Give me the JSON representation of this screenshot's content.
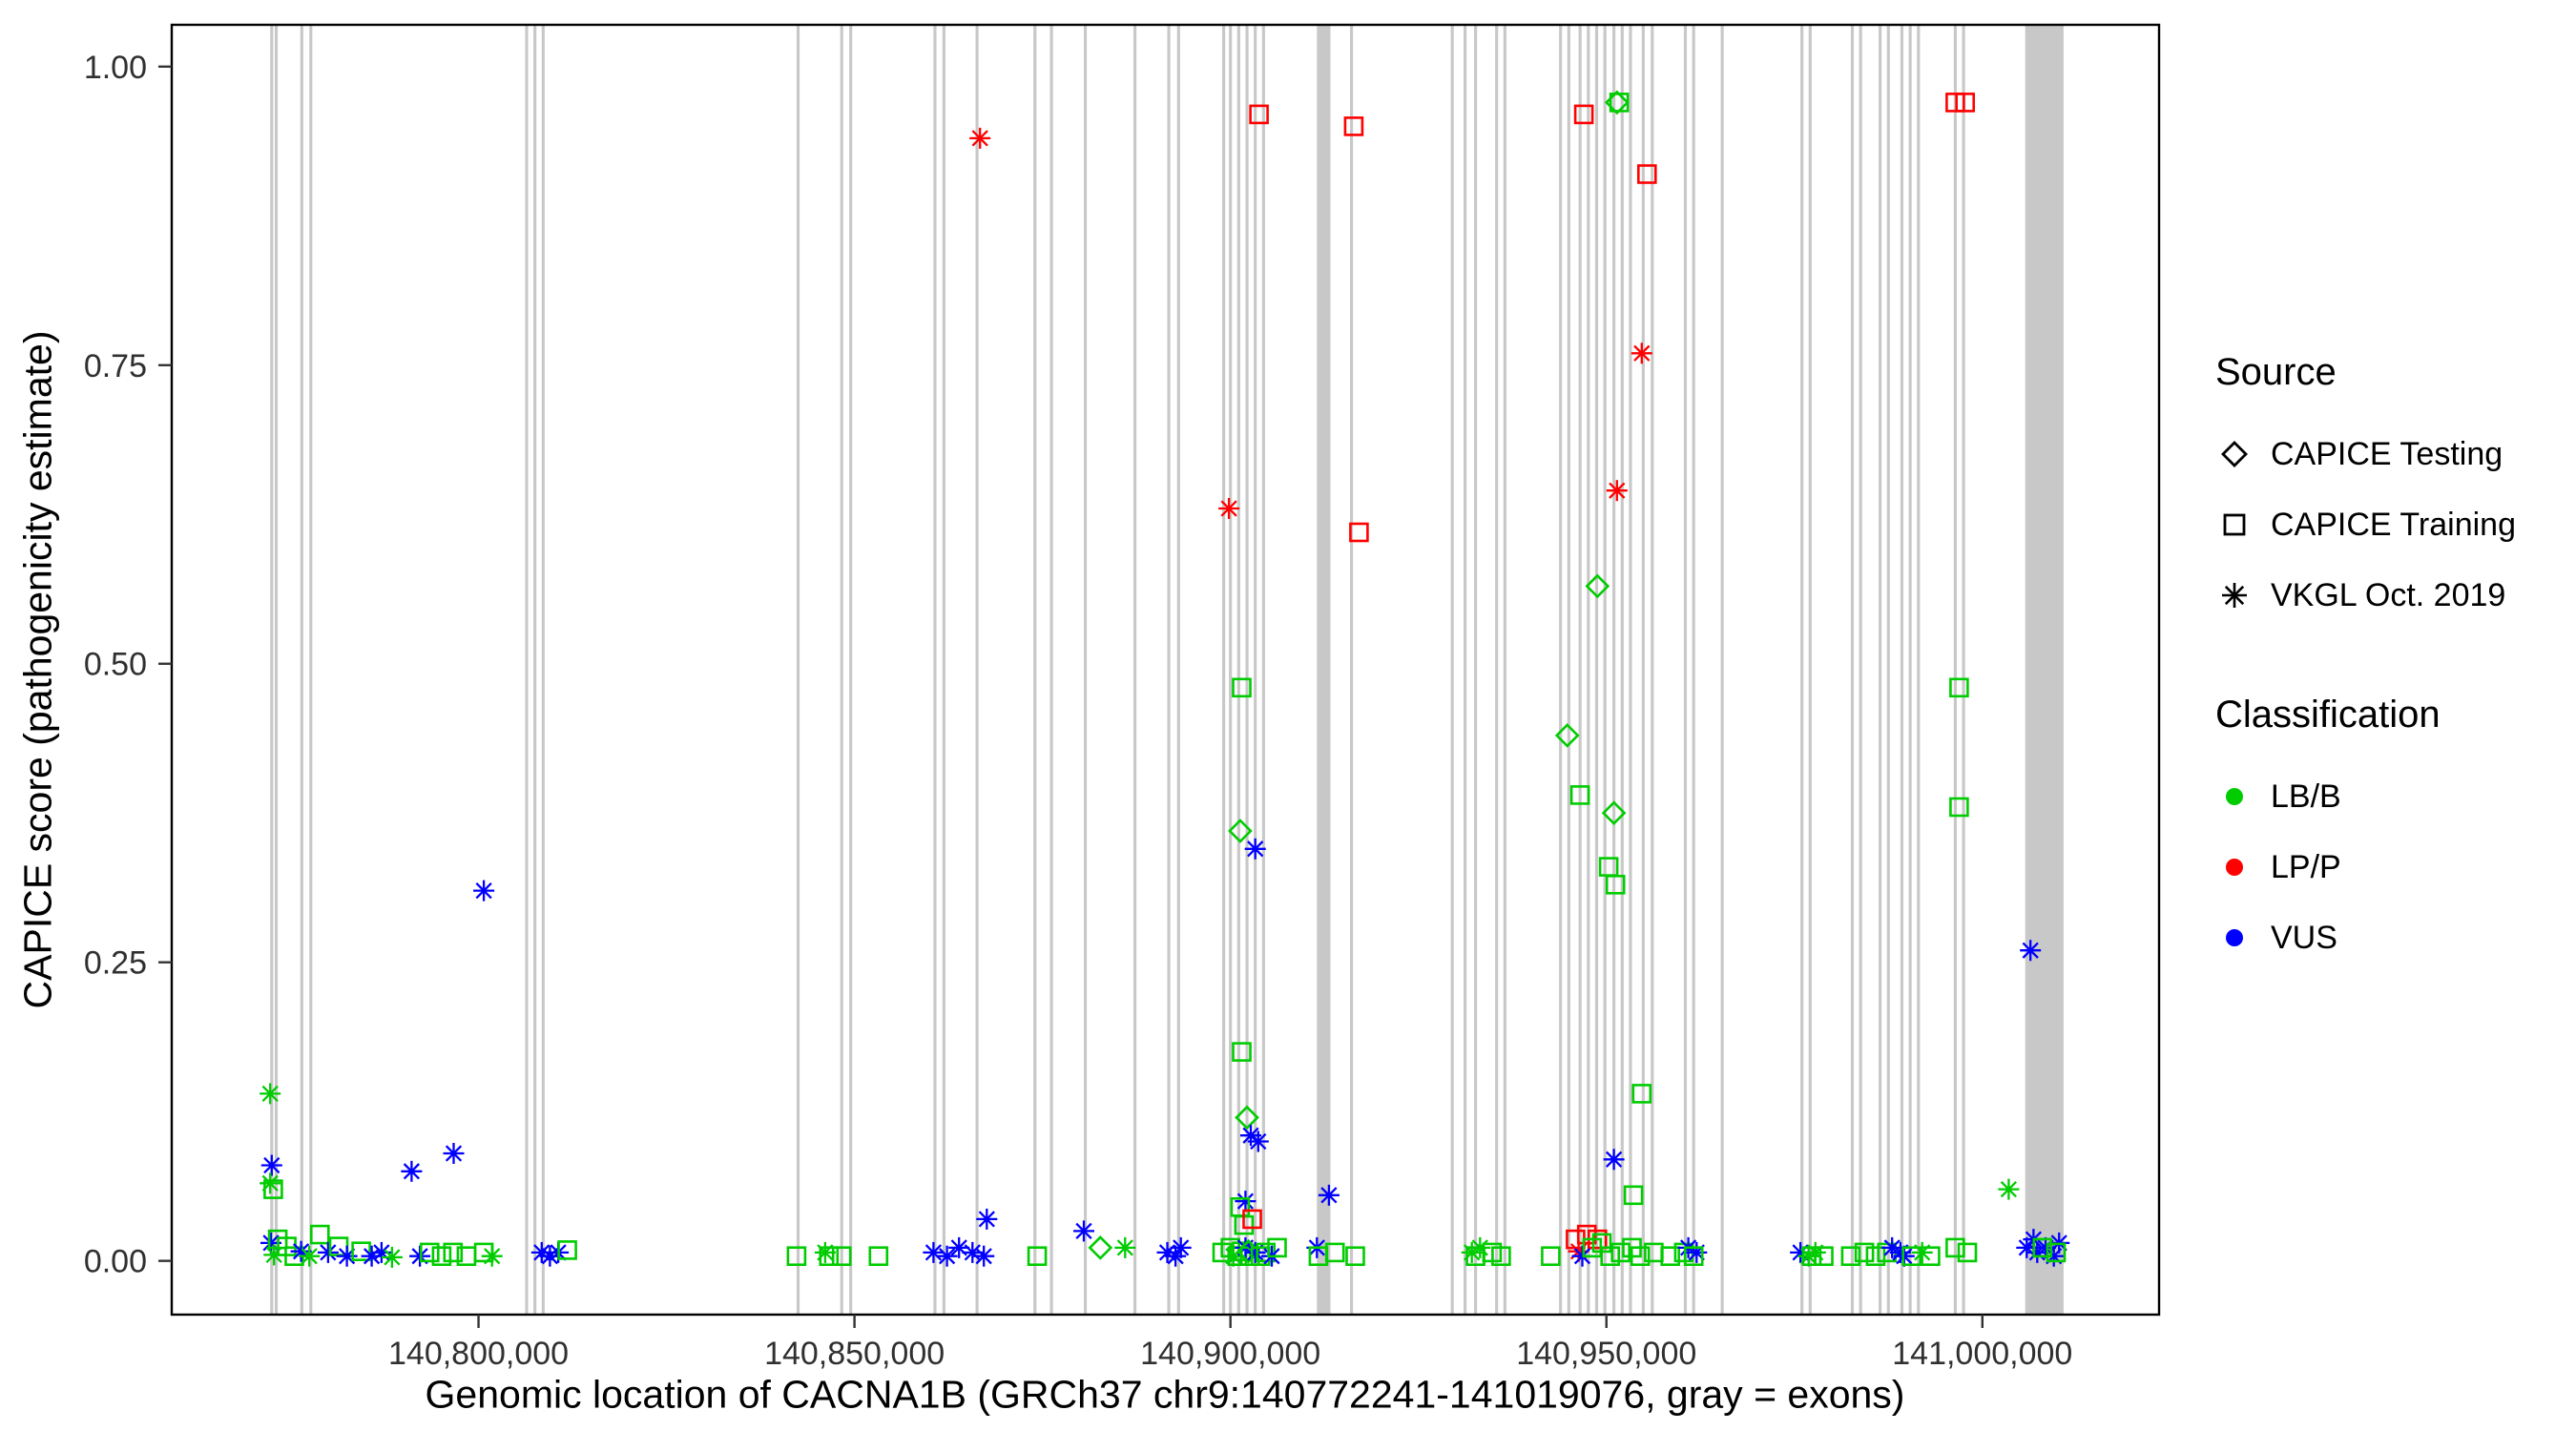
{
  "figure": {
    "background": "#FFFFFF",
    "panel_border": "#000000",
    "tick_color": "#333333",
    "tick_label_color": "#303030"
  },
  "legend": {
    "source_title": "Source",
    "source_items": [
      {
        "label": "CAPICE Testing",
        "shape": "diamond"
      },
      {
        "label": "CAPICE Training",
        "shape": "square"
      },
      {
        "label": "VKGL Oct. 2019",
        "shape": "asterisk"
      }
    ],
    "classification_title": "Classification",
    "classification_items": [
      {
        "label": "LB/B",
        "color": "#00CC00"
      },
      {
        "label": "LP/P",
        "color": "#FF0000"
      },
      {
        "label": "VUS",
        "color": "#0000FF"
      }
    ]
  },
  "chart_data": {
    "type": "scatter",
    "title": "",
    "xlabel": "Genomic location of CACNA1B (GRCh37 chr9:140772241-141019076, gray = exons)",
    "ylabel": "CAPICE score (pathogenicity estimate)",
    "xlim": [
      140759200,
      141023500
    ],
    "ylim": [
      -0.045,
      1.035
    ],
    "grid": false,
    "legend_position": "right",
    "x_ticks": [
      {
        "pos": 140800000,
        "label": "140,800,000"
      },
      {
        "pos": 140850000,
        "label": "140,850,000"
      },
      {
        "pos": 140900000,
        "label": "140,900,000"
      },
      {
        "pos": 140950000,
        "label": "140,950,000"
      },
      {
        "pos": 141000000,
        "label": "141,000,000"
      }
    ],
    "y_ticks": [
      {
        "pos": 0.0,
        "label": "0.00"
      },
      {
        "pos": 0.25,
        "label": "0.25"
      },
      {
        "pos": 0.5,
        "label": "0.50"
      },
      {
        "pos": 0.75,
        "label": "0.75"
      },
      {
        "pos": 1.0,
        "label": "1.00"
      }
    ],
    "exon_color": "#C8C8C8",
    "exons_note": "gray vertical bands = exons, [start_bp, width_bp]",
    "exons": [
      [
        140772300,
        400
      ],
      [
        140772900,
        400
      ],
      [
        140776300,
        400
      ],
      [
        140777500,
        400
      ],
      [
        140806200,
        400
      ],
      [
        140807300,
        400
      ],
      [
        140808400,
        400
      ],
      [
        140842300,
        400
      ],
      [
        140848100,
        400
      ],
      [
        140849300,
        400
      ],
      [
        140860500,
        400
      ],
      [
        140861700,
        400
      ],
      [
        140866100,
        400
      ],
      [
        140873800,
        400
      ],
      [
        140876000,
        400
      ],
      [
        140880500,
        400
      ],
      [
        140887100,
        400
      ],
      [
        140891600,
        400
      ],
      [
        140892900,
        400
      ],
      [
        140898900,
        400
      ],
      [
        140899800,
        400
      ],
      [
        140900900,
        400
      ],
      [
        140902000,
        400
      ],
      [
        140903100,
        400
      ],
      [
        140904200,
        400
      ],
      [
        140911500,
        1800
      ],
      [
        140915900,
        400
      ],
      [
        140929300,
        400
      ],
      [
        140931000,
        400
      ],
      [
        140932400,
        400
      ],
      [
        140935200,
        400
      ],
      [
        140936300,
        400
      ],
      [
        140943700,
        400
      ],
      [
        140944800,
        400
      ],
      [
        140946300,
        400
      ],
      [
        140947400,
        400
      ],
      [
        140948500,
        400
      ],
      [
        140949600,
        400
      ],
      [
        140950800,
        400
      ],
      [
        140951900,
        400
      ],
      [
        140953000,
        400
      ],
      [
        140954700,
        400
      ],
      [
        140955900,
        400
      ],
      [
        140960300,
        400
      ],
      [
        140961400,
        400
      ],
      [
        140965200,
        400
      ],
      [
        140975800,
        400
      ],
      [
        140976900,
        400
      ],
      [
        140982500,
        400
      ],
      [
        140983600,
        400
      ],
      [
        140986200,
        400
      ],
      [
        140987300,
        400
      ],
      [
        140989100,
        400
      ],
      [
        140990200,
        400
      ],
      [
        140991300,
        400
      ],
      [
        140996200,
        400
      ],
      [
        140997300,
        400
      ],
      [
        141005700,
        5100
      ]
    ],
    "classification_codes": {
      "B": "LB/B",
      "P": "LP/P",
      "V": "VUS"
    },
    "classification_colors": {
      "LB/B": "#00CC00",
      "LP/P": "#FF0000",
      "VUS": "#0000FF"
    },
    "source_codes": {
      "d": "CAPICE Testing",
      "q": "CAPICE Training",
      "a": "VKGL Oct. 2019"
    },
    "source_shapes": {
      "CAPICE Testing": "diamond",
      "CAPICE Training": "square",
      "VKGL Oct. 2019": "asterisk"
    },
    "points_note": "[genomic_position_bp, capice_score, classification_code, source_code]",
    "points": [
      [
        140866700,
        0.94,
        "P",
        "a"
      ],
      [
        140903800,
        0.96,
        "P",
        "q"
      ],
      [
        140916400,
        0.95,
        "P",
        "q"
      ],
      [
        140947000,
        0.96,
        "P",
        "q"
      ],
      [
        140951400,
        0.97,
        "B",
        "d"
      ],
      [
        140951700,
        0.97,
        "B",
        "q"
      ],
      [
        140955400,
        0.91,
        "P",
        "q"
      ],
      [
        140996400,
        0.97,
        "P",
        "q"
      ],
      [
        140997700,
        0.97,
        "P",
        "q"
      ],
      [
        140954700,
        0.76,
        "P",
        "a"
      ],
      [
        140951400,
        0.645,
        "P",
        "a"
      ],
      [
        140899800,
        0.63,
        "P",
        "a"
      ],
      [
        140917100,
        0.61,
        "P",
        "q"
      ],
      [
        140948800,
        0.565,
        "B",
        "d"
      ],
      [
        140901500,
        0.48,
        "B",
        "q"
      ],
      [
        140996900,
        0.48,
        "B",
        "q"
      ],
      [
        140944800,
        0.44,
        "B",
        "d"
      ],
      [
        140946500,
        0.39,
        "B",
        "q"
      ],
      [
        140951000,
        0.375,
        "B",
        "d"
      ],
      [
        140996900,
        0.38,
        "B",
        "q"
      ],
      [
        140901300,
        0.36,
        "B",
        "d"
      ],
      [
        140903300,
        0.345,
        "V",
        "a"
      ],
      [
        140950300,
        0.33,
        "B",
        "q"
      ],
      [
        140951200,
        0.315,
        "B",
        "q"
      ],
      [
        140800700,
        0.31,
        "V",
        "a"
      ],
      [
        141006400,
        0.26,
        "V",
        "a"
      ],
      [
        140901500,
        0.175,
        "B",
        "q"
      ],
      [
        140772300,
        0.14,
        "B",
        "a"
      ],
      [
        140954700,
        0.14,
        "B",
        "q"
      ],
      [
        140902200,
        0.12,
        "B",
        "d"
      ],
      [
        140902700,
        0.105,
        "V",
        "a"
      ],
      [
        140903700,
        0.1,
        "V",
        "a"
      ],
      [
        140951000,
        0.085,
        "V",
        "a"
      ],
      [
        140796700,
        0.09,
        "V",
        "a"
      ],
      [
        140791100,
        0.075,
        "V",
        "a"
      ],
      [
        140772500,
        0.08,
        "V",
        "a"
      ],
      [
        140772300,
        0.065,
        "B",
        "a"
      ],
      [
        140772700,
        0.06,
        "B",
        "q"
      ],
      [
        140913100,
        0.055,
        "V",
        "a"
      ],
      [
        141003500,
        0.06,
        "B",
        "a"
      ],
      [
        140953600,
        0.055,
        "B",
        "q"
      ],
      [
        140902000,
        0.05,
        "V",
        "a"
      ],
      [
        140901300,
        0.045,
        "B",
        "q"
      ],
      [
        140901800,
        0.03,
        "B",
        "q"
      ],
      [
        140902900,
        0.035,
        "P",
        "q"
      ],
      [
        140867600,
        0.035,
        "V",
        "a"
      ],
      [
        140880500,
        0.025,
        "V",
        "a"
      ],
      [
        140772400,
        0.015,
        "V",
        "a"
      ],
      [
        140772800,
        0.005,
        "B",
        "a"
      ],
      [
        140773300,
        0.018,
        "B",
        "q"
      ],
      [
        140774500,
        0.012,
        "B",
        "q"
      ],
      [
        140775500,
        0.004,
        "B",
        "q"
      ],
      [
        140776400,
        0.008,
        "V",
        "a"
      ],
      [
        140777500,
        0.004,
        "B",
        "a"
      ],
      [
        140778900,
        0.022,
        "B",
        "q"
      ],
      [
        140780000,
        0.007,
        "V",
        "a"
      ],
      [
        140781400,
        0.012,
        "B",
        "q"
      ],
      [
        140782500,
        0.004,
        "V",
        "a"
      ],
      [
        140784400,
        0.008,
        "B",
        "q"
      ],
      [
        140785800,
        0.004,
        "V",
        "a"
      ],
      [
        140787100,
        0.007,
        "V",
        "a"
      ],
      [
        140788500,
        0.003,
        "B",
        "a"
      ],
      [
        140792200,
        0.004,
        "V",
        "a"
      ],
      [
        140793500,
        0.007,
        "B",
        "q"
      ],
      [
        140795100,
        0.004,
        "B",
        "q"
      ],
      [
        140796600,
        0.007,
        "B",
        "q"
      ],
      [
        140798400,
        0.004,
        "B",
        "q"
      ],
      [
        140800700,
        0.007,
        "B",
        "q"
      ],
      [
        140801800,
        0.004,
        "B",
        "a"
      ],
      [
        140808400,
        0.007,
        "V",
        "a"
      ],
      [
        140809500,
        0.004,
        "V",
        "a"
      ],
      [
        140810600,
        0.007,
        "V",
        "a"
      ],
      [
        140811800,
        0.009,
        "B",
        "q"
      ],
      [
        140842300,
        0.004,
        "B",
        "q"
      ],
      [
        140846100,
        0.007,
        "B",
        "a"
      ],
      [
        140846600,
        0.004,
        "B",
        "q"
      ],
      [
        140848300,
        0.004,
        "B",
        "q"
      ],
      [
        140853200,
        0.004,
        "B",
        "q"
      ],
      [
        140860500,
        0.007,
        "V",
        "a"
      ],
      [
        140862300,
        0.004,
        "V",
        "a"
      ],
      [
        140863900,
        0.011,
        "V",
        "a"
      ],
      [
        140865700,
        0.007,
        "V",
        "a"
      ],
      [
        140867200,
        0.004,
        "V",
        "a"
      ],
      [
        140874300,
        0.004,
        "B",
        "q"
      ],
      [
        140882700,
        0.011,
        "B",
        "d"
      ],
      [
        140886000,
        0.011,
        "B",
        "a"
      ],
      [
        140891600,
        0.007,
        "V",
        "a"
      ],
      [
        140892700,
        0.004,
        "V",
        "a"
      ],
      [
        140893400,
        0.011,
        "V",
        "a"
      ],
      [
        140898900,
        0.007,
        "B",
        "q"
      ],
      [
        140900000,
        0.011,
        "B",
        "q"
      ],
      [
        140900400,
        0.004,
        "B",
        "a"
      ],
      [
        140900900,
        0.004,
        "B",
        "q"
      ],
      [
        140901500,
        0.008,
        "B",
        "q"
      ],
      [
        140902000,
        0.011,
        "V",
        "a"
      ],
      [
        140902400,
        0.008,
        "B",
        "d"
      ],
      [
        140902600,
        0.004,
        "B",
        "q"
      ],
      [
        140903300,
        0.007,
        "V",
        "a"
      ],
      [
        140904000,
        0.004,
        "B",
        "q"
      ],
      [
        140904700,
        0.007,
        "B",
        "q"
      ],
      [
        140905500,
        0.004,
        "V",
        "a"
      ],
      [
        140906200,
        0.011,
        "B",
        "q"
      ],
      [
        140911500,
        0.011,
        "V",
        "a"
      ],
      [
        140911700,
        0.004,
        "B",
        "q"
      ],
      [
        140913900,
        0.007,
        "B",
        "q"
      ],
      [
        140916600,
        0.004,
        "B",
        "q"
      ],
      [
        140932100,
        0.007,
        "B",
        "a"
      ],
      [
        140933200,
        0.011,
        "B",
        "a"
      ],
      [
        140932600,
        0.004,
        "B",
        "q"
      ],
      [
        140934800,
        0.007,
        "B",
        "q"
      ],
      [
        140936000,
        0.004,
        "B",
        "q"
      ],
      [
        140942600,
        0.004,
        "B",
        "q"
      ],
      [
        140945900,
        0.018,
        "P",
        "q"
      ],
      [
        140947400,
        0.022,
        "P",
        "q"
      ],
      [
        140948800,
        0.018,
        "P",
        "q"
      ],
      [
        140946300,
        0.008,
        "P",
        "a"
      ],
      [
        140946800,
        0.004,
        "V",
        "a"
      ],
      [
        140948100,
        0.011,
        "B",
        "q"
      ],
      [
        140949400,
        0.015,
        "B",
        "q"
      ],
      [
        140950500,
        0.004,
        "B",
        "q"
      ],
      [
        140951900,
        0.007,
        "B",
        "q"
      ],
      [
        140953400,
        0.011,
        "B",
        "q"
      ],
      [
        140954500,
        0.004,
        "B",
        "q"
      ],
      [
        140956300,
        0.007,
        "B",
        "q"
      ],
      [
        140958500,
        0.004,
        "B",
        "q"
      ],
      [
        140960300,
        0.007,
        "B",
        "q"
      ],
      [
        140960900,
        0.011,
        "V",
        "a"
      ],
      [
        140962000,
        0.007,
        "V",
        "a"
      ],
      [
        140961600,
        0.004,
        "B",
        "q"
      ],
      [
        140975800,
        0.007,
        "V",
        "a"
      ],
      [
        140976900,
        0.004,
        "B",
        "a"
      ],
      [
        140977800,
        0.007,
        "B",
        "a"
      ],
      [
        140977300,
        0.004,
        "B",
        "q"
      ],
      [
        140978900,
        0.004,
        "B",
        "q"
      ],
      [
        140982500,
        0.004,
        "B",
        "q"
      ],
      [
        140984300,
        0.007,
        "B",
        "q"
      ],
      [
        140985800,
        0.004,
        "B",
        "q"
      ],
      [
        140987300,
        0.007,
        "B",
        "q"
      ],
      [
        140988000,
        0.011,
        "V",
        "a"
      ],
      [
        140989100,
        0.007,
        "V",
        "a"
      ],
      [
        140989600,
        0.004,
        "V",
        "a"
      ],
      [
        140990600,
        0.004,
        "B",
        "q"
      ],
      [
        140992000,
        0.007,
        "B",
        "a"
      ],
      [
        140993100,
        0.004,
        "B",
        "q"
      ],
      [
        140996400,
        0.011,
        "B",
        "q"
      ],
      [
        140998000,
        0.007,
        "B",
        "q"
      ],
      [
        141005900,
        0.011,
        "V",
        "a"
      ],
      [
        141006800,
        0.018,
        "V",
        "a"
      ],
      [
        141007300,
        0.007,
        "V",
        "a"
      ],
      [
        141008400,
        0.011,
        "V",
        "a"
      ],
      [
        141009500,
        0.004,
        "V",
        "a"
      ],
      [
        141010200,
        0.015,
        "V",
        "a"
      ],
      [
        141008000,
        0.011,
        "B",
        "q"
      ],
      [
        141009800,
        0.007,
        "B",
        "q"
      ]
    ]
  }
}
